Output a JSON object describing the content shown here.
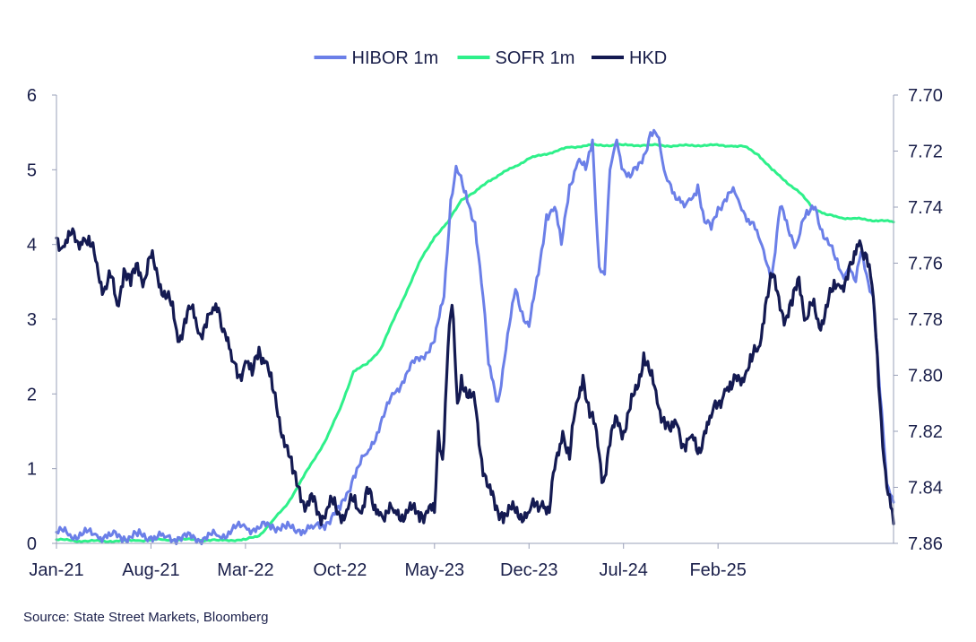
{
  "chart_data": {
    "type": "line",
    "title": "",
    "xlabel": "",
    "ylabel_left": "",
    "ylabel_right": "",
    "x_tick_labels": [
      "Jan-21",
      "Aug-21",
      "Mar-22",
      "Oct-22",
      "May-23",
      "Dec-23",
      "Jul-24",
      "Feb-25"
    ],
    "y_left": {
      "lim": [
        0,
        6
      ],
      "ticks": [
        0,
        1,
        2,
        3,
        4,
        5,
        6
      ]
    },
    "y_right": {
      "lim": [
        7.86,
        7.7
      ],
      "inverted": true,
      "ticks": [
        "7.70",
        "7.72",
        "7.74",
        "7.76",
        "7.78",
        "7.80",
        "7.82",
        "7.84",
        "7.86"
      ]
    },
    "legend_position": "top-center",
    "x_range_months": [
      0,
      55.5
    ],
    "series": [
      {
        "name": "HIBOR 1m",
        "axis": "left",
        "color": "#6b7fe8",
        "points": [
          [
            0,
            0.15
          ],
          [
            1,
            0.12
          ],
          [
            2,
            0.13
          ],
          [
            3,
            0.11
          ],
          [
            4,
            0.1
          ],
          [
            5,
            0.09
          ],
          [
            6,
            0.1
          ],
          [
            7,
            0.09
          ],
          [
            8,
            0.08
          ],
          [
            9,
            0.08
          ],
          [
            10,
            0.07
          ],
          [
            11,
            0.08
          ],
          [
            12,
            0.1
          ],
          [
            13,
            0.18
          ],
          [
            14,
            0.22
          ],
          [
            15,
            0.2
          ],
          [
            16,
            0.25
          ],
          [
            17,
            0.2
          ],
          [
            18,
            0.18
          ],
          [
            19,
            0.2
          ],
          [
            20,
            0.28
          ],
          [
            21,
            0.45
          ],
          [
            22,
            0.9
          ],
          [
            23,
            1.2
          ],
          [
            24,
            1.6
          ],
          [
            25,
            2.0
          ],
          [
            26,
            2.3
          ],
          [
            27,
            2.5
          ],
          [
            28,
            2.7
          ],
          [
            28.7,
            3.3
          ],
          [
            29.2,
            4.6
          ],
          [
            29.6,
            5.05
          ],
          [
            30.2,
            4.7
          ],
          [
            31,
            4.3
          ],
          [
            31.6,
            3.3
          ],
          [
            32,
            2.4
          ],
          [
            32.7,
            1.9
          ],
          [
            33.3,
            2.6
          ],
          [
            34,
            3.4
          ],
          [
            34.5,
            3.1
          ],
          [
            35,
            2.9
          ],
          [
            35.7,
            3.6
          ],
          [
            36.3,
            4.4
          ],
          [
            36.9,
            4.5
          ],
          [
            37.4,
            4.0
          ],
          [
            38,
            4.8
          ],
          [
            38.6,
            5.1
          ],
          [
            39.2,
            5.0
          ],
          [
            39.7,
            5.4
          ],
          [
            40.2,
            3.7
          ],
          [
            40.6,
            3.6
          ],
          [
            41,
            5.0
          ],
          [
            41.5,
            5.4
          ],
          [
            42,
            5.0
          ],
          [
            42.5,
            4.9
          ],
          [
            43,
            5.0
          ],
          [
            43.5,
            5.2
          ],
          [
            44,
            5.5
          ],
          [
            44.5,
            5.45
          ],
          [
            45,
            5.0
          ],
          [
            45.5,
            4.8
          ],
          [
            46,
            4.6
          ],
          [
            46.5,
            4.5
          ],
          [
            47,
            4.6
          ],
          [
            47.5,
            4.8
          ],
          [
            48,
            4.3
          ],
          [
            48.5,
            4.2
          ],
          [
            49,
            4.5
          ],
          [
            49.5,
            4.6
          ],
          [
            50,
            4.7
          ],
          [
            50.5,
            4.6
          ],
          [
            51,
            4.4
          ],
          [
            51.5,
            4.3
          ],
          [
            52,
            4.1
          ],
          [
            52.5,
            3.8
          ],
          [
            53,
            3.6
          ],
          [
            53.6,
            4.5
          ],
          [
            54.2,
            4.2
          ],
          [
            54.8,
            4.0
          ],
          [
            55.2,
            4.3
          ],
          [
            55.7,
            4.4
          ],
          [
            56.2,
            4.5
          ],
          [
            56.7,
            4.2
          ],
          [
            57.2,
            4.0
          ],
          [
            57.7,
            3.8
          ],
          [
            58.2,
            3.6
          ],
          [
            58.7,
            3.7
          ],
          [
            59.2,
            3.5
          ],
          [
            59.6,
            3.9
          ],
          [
            60,
            3.6
          ],
          [
            60.5,
            3.3
          ],
          [
            61,
            2.0
          ],
          [
            61.5,
            0.8
          ],
          [
            62,
            0.55
          ]
        ]
      },
      {
        "name": "SOFR 1m",
        "axis": "left",
        "color": "#2ef08a",
        "points": [
          [
            0,
            0.05
          ],
          [
            2,
            0.03
          ],
          [
            4,
            0.03
          ],
          [
            6,
            0.04
          ],
          [
            8,
            0.05
          ],
          [
            10,
            0.05
          ],
          [
            12,
            0.04
          ],
          [
            14,
            0.05
          ],
          [
            15,
            0.1
          ],
          [
            16,
            0.3
          ],
          [
            17,
            0.5
          ],
          [
            18,
            0.8
          ],
          [
            19,
            1.1
          ],
          [
            20,
            1.4
          ],
          [
            21,
            1.8
          ],
          [
            22,
            2.3
          ],
          [
            23,
            2.4
          ],
          [
            24,
            2.6
          ],
          [
            25,
            3.0
          ],
          [
            26,
            3.4
          ],
          [
            27,
            3.8
          ],
          [
            28,
            4.1
          ],
          [
            29,
            4.3
          ],
          [
            30,
            4.6
          ],
          [
            31,
            4.7
          ],
          [
            32,
            4.85
          ],
          [
            33,
            4.95
          ],
          [
            34,
            5.05
          ],
          [
            35,
            5.15
          ],
          [
            36,
            5.2
          ],
          [
            37,
            5.25
          ],
          [
            38,
            5.3
          ],
          [
            39,
            5.32
          ],
          [
            40,
            5.33
          ],
          [
            42,
            5.33
          ],
          [
            44,
            5.33
          ],
          [
            46,
            5.32
          ],
          [
            48,
            5.33
          ],
          [
            50,
            5.32
          ],
          [
            51,
            5.31
          ],
          [
            52,
            5.2
          ],
          [
            53,
            5.0
          ],
          [
            54,
            4.85
          ],
          [
            55,
            4.7
          ],
          [
            56,
            4.5
          ],
          [
            57,
            4.4
          ],
          [
            58,
            4.36
          ],
          [
            59,
            4.35
          ],
          [
            60,
            4.33
          ],
          [
            61,
            4.32
          ],
          [
            62,
            4.3
          ]
        ]
      },
      {
        "name": "HKD",
        "axis": "right",
        "color": "#141a52",
        "points": [
          [
            0,
            7.751
          ],
          [
            0.5,
            7.754
          ],
          [
            1,
            7.75
          ],
          [
            1.5,
            7.752
          ],
          [
            2,
            7.751
          ],
          [
            2.5,
            7.754
          ],
          [
            3,
            7.76
          ],
          [
            3.5,
            7.77
          ],
          [
            4,
            7.765
          ],
          [
            4.5,
            7.775
          ],
          [
            5,
            7.762
          ],
          [
            5.5,
            7.768
          ],
          [
            6,
            7.76
          ],
          [
            6.5,
            7.766
          ],
          [
            7,
            7.758
          ],
          [
            7.5,
            7.765
          ],
          [
            8,
            7.77
          ],
          [
            8.5,
            7.775
          ],
          [
            9,
            7.788
          ],
          [
            9.5,
            7.78
          ],
          [
            10,
            7.776
          ],
          [
            10.5,
            7.785
          ],
          [
            11,
            7.782
          ],
          [
            11.5,
            7.778
          ],
          [
            12,
            7.776
          ],
          [
            12.5,
            7.785
          ],
          [
            13,
            7.795
          ],
          [
            13.5,
            7.8
          ],
          [
            14,
            7.795
          ],
          [
            14.5,
            7.8
          ],
          [
            15,
            7.79
          ],
          [
            15.5,
            7.795
          ],
          [
            16,
            7.805
          ],
          [
            16.5,
            7.815
          ],
          [
            17,
            7.825
          ],
          [
            17.5,
            7.835
          ],
          [
            18,
            7.84
          ],
          [
            18.5,
            7.847
          ],
          [
            19,
            7.845
          ],
          [
            19.5,
            7.85
          ],
          [
            20,
            7.848
          ],
          [
            20.5,
            7.846
          ],
          [
            21,
            7.85
          ],
          [
            21.5,
            7.848
          ],
          [
            22,
            7.845
          ],
          [
            22.5,
            7.849
          ],
          [
            23,
            7.84
          ],
          [
            23.5,
            7.848
          ],
          [
            24,
            7.849
          ],
          [
            25,
            7.849
          ],
          [
            26,
            7.849
          ],
          [
            27,
            7.849
          ],
          [
            27.5,
            7.849
          ],
          [
            28,
            7.849
          ],
          [
            28.3,
            7.82
          ],
          [
            28.6,
            7.83
          ],
          [
            29,
            7.79
          ],
          [
            29.3,
            7.775
          ],
          [
            29.7,
            7.81
          ],
          [
            30,
            7.8
          ],
          [
            30.5,
            7.808
          ],
          [
            31,
            7.81
          ],
          [
            31.5,
            7.83
          ],
          [
            32,
            7.84
          ],
          [
            32.5,
            7.848
          ],
          [
            33,
            7.849
          ],
          [
            34,
            7.849
          ],
          [
            35,
            7.849
          ],
          [
            36,
            7.845
          ],
          [
            36.5,
            7.849
          ],
          [
            37,
            7.83
          ],
          [
            37.5,
            7.82
          ],
          [
            38,
            7.83
          ],
          [
            38.5,
            7.81
          ],
          [
            39,
            7.8
          ],
          [
            39.5,
            7.815
          ],
          [
            40,
            7.82
          ],
          [
            40.5,
            7.838
          ],
          [
            41,
            7.825
          ],
          [
            41.5,
            7.815
          ],
          [
            42,
            7.82
          ],
          [
            42.5,
            7.812
          ],
          [
            43,
            7.805
          ],
          [
            43.5,
            7.792
          ],
          [
            44,
            7.8
          ],
          [
            44.5,
            7.81
          ],
          [
            45,
            7.815
          ],
          [
            45.5,
            7.82
          ],
          [
            46,
            7.818
          ],
          [
            46.5,
            7.825
          ],
          [
            47,
            7.822
          ],
          [
            47.5,
            7.828
          ],
          [
            48,
            7.82
          ],
          [
            48.5,
            7.815
          ],
          [
            49,
            7.81
          ],
          [
            49.5,
            7.805
          ],
          [
            50,
            7.805
          ],
          [
            50.5,
            7.8
          ],
          [
            51,
            7.8
          ],
          [
            51.5,
            7.795
          ],
          [
            52,
            7.79
          ],
          [
            52.5,
            7.775
          ],
          [
            53,
            7.765
          ],
          [
            53.5,
            7.772
          ],
          [
            54,
            7.78
          ],
          [
            54.5,
            7.775
          ],
          [
            55,
            7.765
          ],
          [
            55.5,
            7.78
          ],
          [
            56,
            7.775
          ],
          [
            56.5,
            7.783
          ],
          [
            57,
            7.775
          ],
          [
            57.5,
            7.77
          ],
          [
            58,
            7.768
          ],
          [
            58.5,
            7.765
          ],
          [
            59,
            7.76
          ],
          [
            59.5,
            7.752
          ],
          [
            60,
            7.757
          ],
          [
            60.5,
            7.772
          ],
          [
            61,
            7.81
          ],
          [
            61.5,
            7.84
          ],
          [
            62,
            7.853
          ]
        ]
      }
    ]
  },
  "source": "Source: State Street Markets, Bloomberg"
}
